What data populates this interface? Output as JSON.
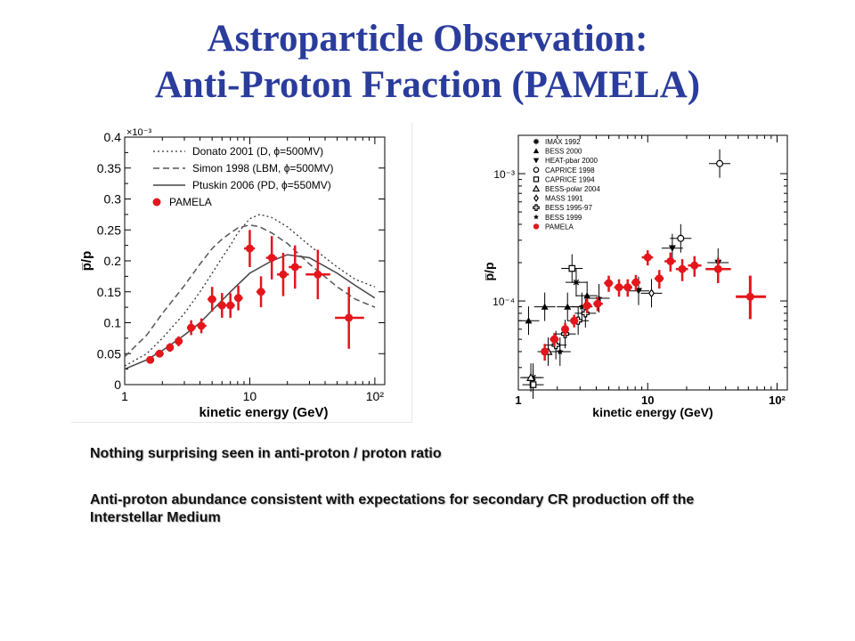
{
  "slide": {
    "title_line1": "Astroparticle Observation:",
    "title_line2": "Anti-Proton Fraction (PAMELA)",
    "bullets": [
      "Nothing surprising seen in anti-proton / proton ratio",
      "Anti-proton abundance consistent with expectations for secondary CR production off the Interstellar Medium"
    ],
    "colors": {
      "title": "#2a3c9c",
      "pamela": "#e3161c"
    }
  },
  "chart_data": [
    {
      "type": "scatter",
      "xlabel": "kinetic energy (GeV)",
      "ylabel": "p̅/p",
      "x_scale": "log",
      "xlim": [
        1,
        120
      ],
      "ylim": [
        0,
        0.4
      ],
      "y_multiplier_label": "×10⁻³",
      "x_ticks": [
        {
          "v": 1,
          "label": "1"
        },
        {
          "v": 10,
          "label": "10"
        },
        {
          "v": 100,
          "label": "10²"
        }
      ],
      "y_ticks": [
        0,
        0.05,
        0.1,
        0.15,
        0.2,
        0.25,
        0.3,
        0.35,
        0.4
      ],
      "y_tick_labels": [
        "0",
        "0.05",
        "0.1",
        "0.15",
        "0.2",
        "0.25",
        "0.3",
        "0.35",
        "0.4"
      ],
      "legend_position": "top-right",
      "legend": [
        "Donato 2001 (D, ϕ=500MV)",
        "Simon 1998 (LBM, ϕ=500MV)",
        "Ptuskin 2006 (PD, ϕ=550MV)",
        "PAMELA"
      ],
      "curves": [
        {
          "name": "Donato 2001 (D, ϕ=500MV)",
          "style": "dotted",
          "points": [
            [
              1,
              0.03
            ],
            [
              1.5,
              0.05
            ],
            [
              2,
              0.075
            ],
            [
              3,
              0.115
            ],
            [
              4,
              0.15
            ],
            [
              5,
              0.18
            ],
            [
              6,
              0.205
            ],
            [
              7,
              0.225
            ],
            [
              8,
              0.245
            ],
            [
              10,
              0.268
            ],
            [
              12,
              0.275
            ],
            [
              15,
              0.27
            ],
            [
              20,
              0.255
            ],
            [
              30,
              0.225
            ],
            [
              50,
              0.19
            ],
            [
              70,
              0.17
            ],
            [
              100,
              0.158
            ]
          ]
        },
        {
          "name": "Simon 1998 (LBM, ϕ=500MV)",
          "style": "dashed",
          "points": [
            [
              1,
              0.045
            ],
            [
              1.5,
              0.08
            ],
            [
              2,
              0.115
            ],
            [
              3,
              0.16
            ],
            [
              4,
              0.195
            ],
            [
              5,
              0.22
            ],
            [
              6,
              0.235
            ],
            [
              7,
              0.245
            ],
            [
              8,
              0.253
            ],
            [
              10,
              0.258
            ],
            [
              12,
              0.255
            ],
            [
              15,
              0.245
            ],
            [
              20,
              0.228
            ],
            [
              30,
              0.195
            ],
            [
              50,
              0.158
            ],
            [
              70,
              0.138
            ],
            [
              100,
              0.125
            ]
          ]
        },
        {
          "name": "Ptuskin 2006 (PD, ϕ=550MV)",
          "style": "solid",
          "points": [
            [
              1,
              0.025
            ],
            [
              1.5,
              0.04
            ],
            [
              2,
              0.055
            ],
            [
              3,
              0.08
            ],
            [
              4,
              0.1
            ],
            [
              5,
              0.12
            ],
            [
              7,
              0.15
            ],
            [
              10,
              0.18
            ],
            [
              15,
              0.2
            ],
            [
              20,
              0.21
            ],
            [
              30,
              0.205
            ],
            [
              50,
              0.18
            ],
            [
              70,
              0.16
            ],
            [
              100,
              0.14
            ]
          ]
        }
      ],
      "series": [
        {
          "name": "PAMELA",
          "points": [
            {
              "x": 1.6,
              "y": 0.04,
              "xe": [
                1.5,
                1.7
              ],
              "ye": 0.005
            },
            {
              "x": 1.9,
              "y": 0.05,
              "xe": [
                1.75,
                2.05
              ],
              "ye": 0.006
            },
            {
              "x": 2.3,
              "y": 0.06,
              "xe": [
                2.15,
                2.45
              ],
              "ye": 0.007
            },
            {
              "x": 2.7,
              "y": 0.07,
              "xe": [
                2.55,
                2.9
              ],
              "ye": 0.008
            },
            {
              "x": 3.4,
              "y": 0.092,
              "xe": [
                3.15,
                3.7
              ],
              "ye": 0.012
            },
            {
              "x": 4.1,
              "y": 0.095,
              "xe": [
                3.8,
                4.5
              ],
              "ye": 0.012
            },
            {
              "x": 5.0,
              "y": 0.138,
              "xe": [
                4.6,
                5.4
              ],
              "ye": 0.02
            },
            {
              "x": 6.0,
              "y": 0.128,
              "xe": [
                5.5,
                6.5
              ],
              "ye": 0.02
            },
            {
              "x": 7.0,
              "y": 0.128,
              "xe": [
                6.5,
                7.6
              ],
              "ye": 0.02
            },
            {
              "x": 8.1,
              "y": 0.14,
              "xe": [
                7.5,
                8.8
              ],
              "ye": 0.02
            },
            {
              "x": 10.0,
              "y": 0.22,
              "xe": [
                9.0,
                11.0
              ],
              "ye": 0.03
            },
            {
              "x": 12.3,
              "y": 0.15,
              "xe": [
                11.3,
                13.3
              ],
              "ye": 0.025
            },
            {
              "x": 15.0,
              "y": 0.205,
              "xe": [
                13.5,
                16.5
              ],
              "ye": 0.035
            },
            {
              "x": 18.5,
              "y": 0.178,
              "xe": [
                16.5,
                20.5
              ],
              "ye": 0.035
            },
            {
              "x": 23.0,
              "y": 0.19,
              "xe": [
                20.5,
                26.0
              ],
              "ye": 0.035
            },
            {
              "x": 35.0,
              "y": 0.178,
              "xe": [
                28.0,
                44.0
              ],
              "ye": 0.04
            },
            {
              "x": 62.0,
              "y": 0.108,
              "xe": [
                48.0,
                82.0
              ],
              "ye": 0.05
            }
          ]
        }
      ]
    },
    {
      "type": "scatter",
      "xlabel": "kinetic energy (GeV)",
      "ylabel": "p̅/p",
      "x_scale": "log",
      "y_scale": "log",
      "xlim": [
        1,
        120
      ],
      "ylim": [
        2e-05,
        0.002
      ],
      "x_ticks": [
        {
          "v": 1,
          "label": "1"
        },
        {
          "v": 10,
          "label": "10"
        },
        {
          "v": 100,
          "label": "10²"
        }
      ],
      "y_ticks": [
        {
          "v": 0.001,
          "label": "10⁻³"
        },
        {
          "v": 0.0001,
          "label": "10⁻⁴"
        }
      ],
      "legend_position": "top-left",
      "legend": [
        "IMAX 1992",
        "BESS 2000",
        "HEAT-pbar 2000",
        "CAPRICE 1998",
        "CAPRICE 1994",
        "BESS-polar 2004",
        "MASS 1991",
        "BESS 1995-97",
        "BESS 1999",
        "PAMELA"
      ],
      "series": [
        {
          "name": "IMAX 1992",
          "marker": "asterisk",
          "points": [
            {
              "x": 1.3,
              "y": 2.5e-05
            },
            {
              "x": 2.8,
              "y": 0.00014
            }
          ]
        },
        {
          "name": "BESS 2000",
          "marker": "triangle-up",
          "points": [
            {
              "x": 1.2,
              "y": 7e-05
            },
            {
              "x": 1.6,
              "y": 9e-05
            },
            {
              "x": 2.4,
              "y": 9e-05
            },
            {
              "x": 3.4,
              "y": 0.00011
            }
          ]
        },
        {
          "name": "HEAT-pbar 2000",
          "marker": "triangle-down",
          "points": [
            {
              "x": 8.5,
              "y": 0.00012
            },
            {
              "x": 15.5,
              "y": 0.00026
            },
            {
              "x": 35.0,
              "y": 0.0002
            }
          ]
        },
        {
          "name": "CAPRICE 1998",
          "marker": "circle-open",
          "points": [
            {
              "x": 18.0,
              "y": 0.00031
            },
            {
              "x": 36.0,
              "y": 0.0012
            }
          ]
        },
        {
          "name": "CAPRICE 1994",
          "marker": "square-open",
          "points": [
            {
              "x": 1.3,
              "y": 2.2e-05
            },
            {
              "x": 2.6,
              "y": 0.00018
            }
          ]
        },
        {
          "name": "BESS-polar 2004",
          "marker": "triangle-open",
          "points": [
            {
              "x": 1.25,
              "y": 2.5e-05
            },
            {
              "x": 1.7,
              "y": 4e-05
            }
          ]
        },
        {
          "name": "MASS 1991",
          "marker": "diamond-open",
          "points": [
            {
              "x": 10.7,
              "y": 0.000115
            }
          ]
        },
        {
          "name": "BESS 1995-97",
          "marker": "cross-open",
          "points": [
            {
              "x": 1.95,
              "y": 4.5e-05
            },
            {
              "x": 2.3,
              "y": 5.5e-05
            },
            {
              "x": 2.9,
              "y": 7e-05
            },
            {
              "x": 3.3,
              "y": 8e-05
            }
          ]
        },
        {
          "name": "BESS 1999",
          "marker": "star",
          "points": [
            {
              "x": 2.1,
              "y": 4e-05
            },
            {
              "x": 3.1,
              "y": 9e-05
            },
            {
              "x": 4.2,
              "y": 0.000105
            }
          ]
        },
        {
          "name": "PAMELA",
          "marker": "circle-filled",
          "points": [
            {
              "x": 1.6,
              "y": 4e-05,
              "xe": [
                1.5,
                1.7
              ],
              "ye": [
                3.4e-05,
                4.6e-05
              ]
            },
            {
              "x": 1.9,
              "y": 5e-05,
              "xe": [
                1.75,
                2.05
              ],
              "ye": [
                4.4e-05,
                5.6e-05
              ]
            },
            {
              "x": 2.3,
              "y": 6e-05,
              "xe": [
                2.15,
                2.45
              ],
              "ye": [
                5.3e-05,
                6.7e-05
              ]
            },
            {
              "x": 2.7,
              "y": 7e-05,
              "xe": [
                2.55,
                2.9
              ],
              "ye": [
                6.2e-05,
                7.8e-05
              ]
            },
            {
              "x": 3.4,
              "y": 9.2e-05,
              "xe": [
                3.15,
                3.7
              ],
              "ye": [
                8e-05,
                0.000104
              ]
            },
            {
              "x": 4.1,
              "y": 9.5e-05,
              "xe": [
                3.8,
                4.5
              ],
              "ye": [
                8.3e-05,
                0.000107
              ]
            },
            {
              "x": 5.0,
              "y": 0.000138,
              "xe": [
                4.6,
                5.4
              ],
              "ye": [
                0.000118,
                0.000158
              ]
            },
            {
              "x": 6.0,
              "y": 0.000128,
              "xe": [
                5.5,
                6.5
              ],
              "ye": [
                0.000108,
                0.000148
              ]
            },
            {
              "x": 7.0,
              "y": 0.000128,
              "xe": [
                6.5,
                7.6
              ],
              "ye": [
                0.000108,
                0.000148
              ]
            },
            {
              "x": 8.1,
              "y": 0.00014,
              "xe": [
                7.5,
                8.8
              ],
              "ye": [
                0.00012,
                0.00016
              ]
            },
            {
              "x": 10.0,
              "y": 0.00022,
              "xe": [
                9.0,
                11.0
              ],
              "ye": [
                0.00019,
                0.00025
              ]
            },
            {
              "x": 12.3,
              "y": 0.00015,
              "xe": [
                11.3,
                13.3
              ],
              "ye": [
                0.000125,
                0.000175
              ]
            },
            {
              "x": 15.0,
              "y": 0.000205,
              "xe": [
                13.5,
                16.5
              ],
              "ye": [
                0.00017,
                0.00024
              ]
            },
            {
              "x": 18.5,
              "y": 0.000178,
              "xe": [
                16.5,
                20.5
              ],
              "ye": [
                0.000143,
                0.000213
              ]
            },
            {
              "x": 23.0,
              "y": 0.00019,
              "xe": [
                20.5,
                26.0
              ],
              "ye": [
                0.000155,
                0.000225
              ]
            },
            {
              "x": 35.0,
              "y": 0.000178,
              "xe": [
                28.0,
                44.0
              ],
              "ye": [
                0.000138,
                0.000218
              ]
            },
            {
              "x": 62.0,
              "y": 0.000108,
              "xe": [
                48.0,
                82.0
              ],
              "ye": [
                7.2e-05,
                0.000158
              ]
            }
          ]
        }
      ]
    }
  ]
}
